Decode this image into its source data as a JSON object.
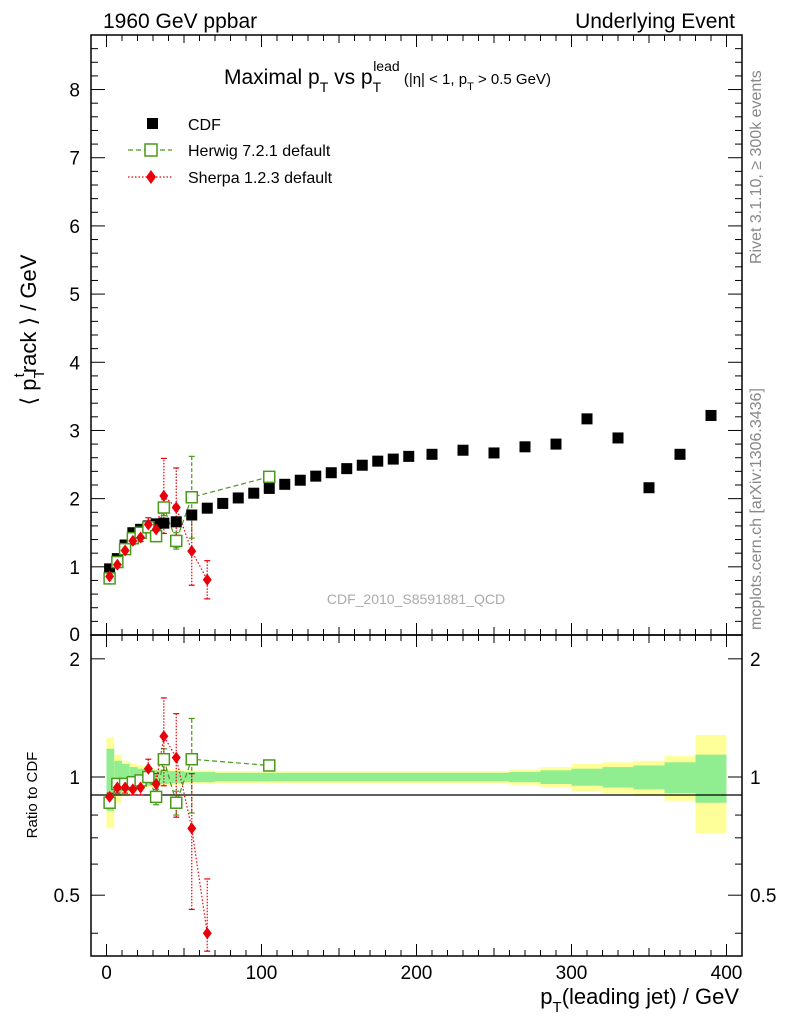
{
  "header": {
    "left": "1960 GeV ppbar",
    "right": "Underlying Event"
  },
  "side": {
    "rivet": "Rivet 3.1.10, ≥ 300k events",
    "mcplots": "mcplots.cern.ch [arXiv:1306.3436]"
  },
  "chart_data": {
    "type": "scatter",
    "title": "Maximal pT vs pT^lead (|η| < 1, pT > 0.5 GeV)",
    "title_parts": {
      "main": "Maximal p",
      "sub1": "T",
      "vs": " vs p",
      "sub2": "T",
      "sup2": "lead",
      "cut_a": " (|η| < 1, p",
      "cut_sub": "T",
      "cut_b": " > 0.5 GeV)"
    },
    "watermark": "CDF_2010_S8591881_QCD",
    "ylabel": "⟨ pTtrack ⟩ / GeV",
    "ylabel_parts": {
      "open": "⟨ p",
      "sub": "T",
      "sup": "t",
      "rest": "rack ⟩ / GeV"
    },
    "xlabel": "pT(leading jet) / GeV",
    "xlabel_parts": {
      "p": "p",
      "sub": "T",
      "rest": "(leading jet) / GeV"
    },
    "ratio_ylabel": "Ratio to CDF",
    "xlim": [
      -10,
      410
    ],
    "ylim": [
      0,
      8.8
    ],
    "ratio_ylim": [
      0.35,
      2.3
    ],
    "x_ticks": [
      0,
      100,
      200,
      300,
      400
    ],
    "y_ticks": [
      1,
      2,
      3,
      4,
      5,
      6,
      7,
      8
    ],
    "ratio_ticks": [
      0.5,
      1,
      2
    ],
    "legend_position": "top-left",
    "series": [
      {
        "name": "CDF",
        "marker": "square-filled",
        "color": "#000000",
        "x": [
          2,
          7,
          12,
          17,
          22,
          27,
          32,
          37,
          45,
          55,
          65,
          75,
          85,
          95,
          105,
          115,
          125,
          135,
          145,
          155,
          165,
          175,
          185,
          195,
          210,
          230,
          250,
          270,
          290,
          310,
          330,
          350,
          370,
          390
        ],
        "y": [
          0.97,
          1.12,
          1.32,
          1.5,
          1.55,
          1.6,
          1.63,
          1.64,
          1.66,
          1.76,
          1.86,
          1.93,
          2.01,
          2.08,
          2.15,
          2.21,
          2.27,
          2.33,
          2.38,
          2.44,
          2.49,
          2.55,
          2.58,
          2.62,
          2.65,
          2.71,
          2.67,
          2.76,
          2.8,
          3.17,
          2.89,
          2.16,
          2.65,
          3.22
        ]
      },
      {
        "name": "Herwig 7.2.1 default",
        "marker": "square-open",
        "color": "#4a9a1a",
        "line": "dashed",
        "x": [
          2,
          7,
          12,
          17,
          22,
          27,
          32,
          37,
          45,
          55,
          105
        ],
        "y": [
          0.83,
          1.07,
          1.26,
          1.42,
          1.5,
          1.58,
          1.45,
          1.87,
          1.38,
          2.02,
          2.32
        ],
        "err": [
          0.02,
          0.03,
          0.03,
          0.04,
          0.05,
          0.05,
          0.08,
          0.12,
          0.12,
          0.6,
          0.06
        ]
      },
      {
        "name": "Sherpa 1.2.3 default",
        "marker": "diamond-filled",
        "color": "#e8000b",
        "line": "dotted",
        "x": [
          2,
          7,
          12,
          17,
          22,
          27,
          32,
          37,
          45,
          55,
          65
        ],
        "y": [
          0.86,
          1.03,
          1.24,
          1.38,
          1.43,
          1.62,
          1.55,
          2.04,
          1.87,
          1.23,
          0.81
        ],
        "err": [
          0.03,
          0.04,
          0.05,
          0.05,
          0.06,
          0.1,
          0.1,
          0.55,
          0.58,
          0.5,
          0.28
        ]
      }
    ],
    "ratio_series": [
      {
        "name": "Herwig 7.2.1 default",
        "x": [
          2,
          7,
          12,
          17,
          22,
          27,
          32,
          37,
          45,
          55,
          105
        ],
        "y": [
          0.86,
          0.96,
          0.96,
          0.97,
          0.98,
          1.0,
          0.89,
          1.11,
          0.86,
          1.11,
          1.07
        ],
        "err": [
          0.02,
          0.02,
          0.02,
          0.03,
          0.03,
          0.03,
          0.04,
          0.07,
          0.06,
          0.3,
          0.02
        ]
      },
      {
        "name": "Sherpa 1.2.3 default",
        "x": [
          2,
          7,
          12,
          17,
          22,
          27,
          32,
          37,
          45,
          55,
          65
        ],
        "y": [
          0.89,
          0.94,
          0.94,
          0.93,
          0.94,
          1.05,
          0.96,
          1.27,
          1.12,
          0.74,
          0.4
        ],
        "err": [
          0.02,
          0.03,
          0.03,
          0.03,
          0.04,
          0.06,
          0.06,
          0.32,
          0.33,
          0.28,
          0.15
        ]
      }
    ],
    "cdf_uncertainty_bands": {
      "x_edges": [
        0,
        5,
        10,
        15,
        20,
        25,
        30,
        35,
        40,
        50,
        60,
        70,
        80,
        90,
        100,
        110,
        120,
        130,
        140,
        150,
        160,
        170,
        180,
        190,
        200,
        220,
        240,
        260,
        280,
        300,
        320,
        340,
        360,
        380,
        400
      ],
      "stat": [
        0.18,
        0.1,
        0.08,
        0.06,
        0.05,
        0.05,
        0.04,
        0.04,
        0.035,
        0.03,
        0.03,
        0.025,
        0.025,
        0.025,
        0.025,
        0.025,
        0.025,
        0.025,
        0.025,
        0.025,
        0.025,
        0.025,
        0.025,
        0.025,
        0.025,
        0.025,
        0.025,
        0.03,
        0.04,
        0.05,
        0.06,
        0.07,
        0.09,
        0.14
      ],
      "total": [
        0.26,
        0.14,
        0.1,
        0.08,
        0.07,
        0.06,
        0.05,
        0.05,
        0.045,
        0.04,
        0.04,
        0.035,
        0.035,
        0.035,
        0.035,
        0.035,
        0.035,
        0.035,
        0.035,
        0.035,
        0.035,
        0.035,
        0.035,
        0.035,
        0.035,
        0.035,
        0.035,
        0.045,
        0.06,
        0.08,
        0.09,
        0.1,
        0.13,
        0.28
      ]
    }
  },
  "colors": {
    "stat_band": "#90ee90",
    "total_band": "#ffff99",
    "cdf": "#000000",
    "herwig": "#4a9a1a",
    "sherpa": "#e8000b",
    "side_text": "#888888",
    "watermark": "#aaaaaa"
  }
}
